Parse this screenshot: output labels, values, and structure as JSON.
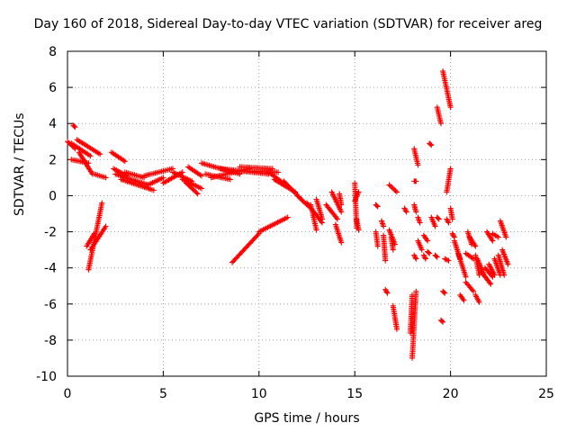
{
  "chart_data": {
    "type": "scatter",
    "title": "Day 160 of 2018, Sidereal Day-to-day VTEC variation (SDTVAR) for receiver areg",
    "xlabel": "GPS time / hours",
    "ylabel": "SDTVAR / TECUs",
    "xlim": [
      0,
      25
    ],
    "ylim": [
      -10,
      8
    ],
    "xticks": [
      "0",
      "5",
      "10",
      "15",
      "20",
      "25"
    ],
    "yticks": [
      "-10",
      "-8",
      "-6",
      "-4",
      "-2",
      "0",
      "2",
      "4",
      "6",
      "8"
    ],
    "grid": true,
    "marker": "+",
    "color": "#ff0000",
    "series": [
      {
        "name": "SDTVAR",
        "segments": [
          {
            "x": [
              0,
              0.4
            ],
            "y": [
              3.0,
              2.6
            ]
          },
          {
            "x": [
              0.2,
              1.2
            ],
            "y": [
              2.9,
              2.2
            ]
          },
          {
            "x": [
              0.5,
              1.7
            ],
            "y": [
              3.1,
              2.3
            ]
          },
          {
            "x": [
              0.6,
              1.3
            ],
            "y": [
              2.4,
              1.2
            ]
          },
          {
            "x": [
              0.2,
              1.1
            ],
            "y": [
              2.0,
              1.8
            ]
          },
          {
            "x": [
              0.3,
              0.4
            ],
            "y": [
              3.9,
              3.8
            ]
          },
          {
            "x": [
              1.4,
              2.0
            ],
            "y": [
              1.2,
              1.0
            ]
          },
          {
            "x": [
              1.1,
              1.8
            ],
            "y": [
              -4.1,
              -0.4
            ]
          },
          {
            "x": [
              1.2,
              2.0
            ],
            "y": [
              -3.0,
              -1.7
            ]
          },
          {
            "x": [
              1.0,
              1.4
            ],
            "y": [
              -2.8,
              -2.1
            ]
          },
          {
            "x": [
              2.3,
              3.0
            ],
            "y": [
              2.4,
              1.9
            ]
          },
          {
            "x": [
              2.4,
              3.1
            ],
            "y": [
              1.5,
              1.1
            ]
          },
          {
            "x": [
              2.5,
              4.2
            ],
            "y": [
              1.2,
              0.6
            ]
          },
          {
            "x": [
              2.8,
              4.5
            ],
            "y": [
              0.9,
              0.3
            ]
          },
          {
            "x": [
              3.0,
              4.0
            ],
            "y": [
              1.3,
              1.0
            ]
          },
          {
            "x": [
              4.0,
              5.5
            ],
            "y": [
              1.1,
              1.5
            ]
          },
          {
            "x": [
              4.2,
              5.0
            ],
            "y": [
              0.6,
              1.0
            ]
          },
          {
            "x": [
              5.0,
              6.0
            ],
            "y": [
              0.7,
              1.3
            ]
          },
          {
            "x": [
              5.5,
              6.5
            ],
            "y": [
              1.3,
              0.8
            ]
          },
          {
            "x": [
              6.0,
              7.0
            ],
            "y": [
              0.9,
              0.4
            ]
          },
          {
            "x": [
              6.3,
              7.0
            ],
            "y": [
              1.6,
              1.1
            ]
          },
          {
            "x": [
              6.2,
              6.8
            ],
            "y": [
              0.7,
              0.1
            ]
          },
          {
            "x": [
              7.0,
              9.0
            ],
            "y": [
              1.8,
              1.2
            ]
          },
          {
            "x": [
              7.2,
              8.5
            ],
            "y": [
              1.2,
              0.9
            ]
          },
          {
            "x": [
              7.5,
              9.5
            ],
            "y": [
              1.0,
              1.5
            ]
          },
          {
            "x": [
              8.0,
              10.5
            ],
            "y": [
              1.5,
              1.2
            ]
          },
          {
            "x": [
              8.5,
              11.0
            ],
            "y": [
              1.4,
              1.3
            ]
          },
          {
            "x": [
              9.0,
              10.7
            ],
            "y": [
              1.6,
              1.5
            ]
          },
          {
            "x": [
              8.6,
              10.0
            ],
            "y": [
              -3.7,
              -2.1
            ]
          },
          {
            "x": [
              10.0,
              11.5
            ],
            "y": [
              -2.0,
              -1.2
            ]
          },
          {
            "x": [
              10.5,
              11.4
            ],
            "y": [
              1.3,
              0.6
            ]
          },
          {
            "x": [
              10.8,
              11.9
            ],
            "y": [
              0.9,
              0.2
            ]
          },
          {
            "x": [
              11.3,
              12.3
            ],
            "y": [
              0.8,
              -0.3
            ]
          },
          {
            "x": [
              12.0,
              12.6
            ],
            "y": [
              0.0,
              -0.6
            ]
          },
          {
            "x": [
              12.5,
              13.3
            ],
            "y": [
              -0.4,
              -1.5
            ]
          },
          {
            "x": [
              12.7,
              13.0
            ],
            "y": [
              -0.5,
              -1.9
            ]
          },
          {
            "x": [
              13.0,
              13.3
            ],
            "y": [
              -0.2,
              -1.3
            ]
          },
          {
            "x": [
              13.5,
              14.1
            ],
            "y": [
              -0.5,
              -1.3
            ]
          },
          {
            "x": [
              13.8,
              14.3
            ],
            "y": [
              0.2,
              -0.9
            ]
          },
          {
            "x": [
              14.0,
              14.3
            ],
            "y": [
              -1.6,
              -2.6
            ]
          },
          {
            "x": [
              14.2,
              14.3
            ],
            "y": [
              0.1,
              -0.5
            ]
          },
          {
            "x": [
              15.0,
              15.1
            ],
            "y": [
              0.7,
              -1.8
            ]
          },
          {
            "x": [
              15.0,
              15.2
            ],
            "y": [
              -0.3,
              0.2
            ]
          },
          {
            "x": [
              15.1,
              15.2
            ],
            "y": [
              -1.3,
              -1.9
            ]
          },
          {
            "x": [
              16.1,
              16.2
            ],
            "y": [
              -0.5,
              -0.6
            ]
          },
          {
            "x": [
              16.1,
              16.2
            ],
            "y": [
              -2.0,
              -2.8
            ]
          },
          {
            "x": [
              16.4,
              16.5
            ],
            "y": [
              -1.4,
              -1.7
            ]
          },
          {
            "x": [
              16.5,
              16.6
            ],
            "y": [
              -2.2,
              -3.6
            ]
          },
          {
            "x": [
              16.6,
              16.7
            ],
            "y": [
              -5.2,
              -5.4
            ]
          },
          {
            "x": [
              16.8,
              17.1
            ],
            "y": [
              -1.9,
              -2.7
            ]
          },
          {
            "x": [
              16.9,
              17.0
            ],
            "y": [
              -2.3,
              -3.0
            ]
          },
          {
            "x": [
              16.8,
              17.2
            ],
            "y": [
              0.6,
              0.2
            ]
          },
          {
            "x": [
              17.0,
              17.2
            ],
            "y": [
              -6.1,
              -7.4
            ]
          },
          {
            "x": [
              17.6,
              17.7
            ],
            "y": [
              -0.7,
              -0.9
            ]
          },
          {
            "x": [
              17.9,
              18.0
            ],
            "y": [
              -7.6,
              -5.5
            ]
          },
          {
            "x": [
              18.0,
              18.2
            ],
            "y": [
              -9.0,
              -5.3
            ]
          },
          {
            "x": [
              18.1,
              18.2
            ],
            "y": [
              -3.3,
              -3.5
            ]
          },
          {
            "x": [
              18.1,
              18.2
            ],
            "y": [
              -0.5,
              -0.9
            ]
          },
          {
            "x": [
              18.1,
              18.2
            ],
            "y": [
              0.8,
              0.8
            ]
          },
          {
            "x": [
              18.3,
              18.4
            ],
            "y": [
              -1.2,
              -1.5
            ]
          },
          {
            "x": [
              18.1,
              18.3
            ],
            "y": [
              2.6,
              1.7
            ]
          },
          {
            "x": [
              18.3,
              18.5
            ],
            "y": [
              -2.5,
              -3.0
            ]
          },
          {
            "x": [
              18.6,
              18.7
            ],
            "y": [
              -3.3,
              -3.5
            ]
          },
          {
            "x": [
              18.6,
              18.8
            ],
            "y": [
              -2.2,
              -2.5
            ]
          },
          {
            "x": [
              18.8,
              18.9
            ],
            "y": [
              -3.1,
              -3.2
            ]
          },
          {
            "x": [
              18.9,
              19.0
            ],
            "y": [
              2.9,
              2.8
            ]
          },
          {
            "x": [
              19.0,
              19.2
            ],
            "y": [
              -1.2,
              -1.7
            ]
          },
          {
            "x": [
              19.2,
              19.3
            ],
            "y": [
              -3.3,
              -3.4
            ]
          },
          {
            "x": [
              19.3,
              19.4
            ],
            "y": [
              -1.2,
              -1.3
            ]
          },
          {
            "x": [
              19.3,
              19.5
            ],
            "y": [
              4.9,
              4.0
            ]
          },
          {
            "x": [
              19.5,
              19.6
            ],
            "y": [
              -6.9,
              -7.0
            ]
          },
          {
            "x": [
              19.6,
              19.7
            ],
            "y": [
              -5.3,
              -5.4
            ]
          },
          {
            "x": [
              19.7,
              19.9
            ],
            "y": [
              -3.5,
              -3.6
            ]
          },
          {
            "x": [
              19.8,
              19.9
            ],
            "y": [
              -1.3,
              -1.5
            ]
          },
          {
            "x": [
              19.6,
              20.0
            ],
            "y": [
              6.9,
              4.9
            ]
          },
          {
            "x": [
              19.8,
              20.0
            ],
            "y": [
              0.2,
              1.5
            ]
          },
          {
            "x": [
              20.0,
              20.1
            ],
            "y": [
              -0.7,
              -1.3
            ]
          },
          {
            "x": [
              20.1,
              20.2
            ],
            "y": [
              -2.1,
              -2.3
            ]
          },
          {
            "x": [
              20.2,
              20.5
            ],
            "y": [
              -2.5,
              -3.5
            ]
          },
          {
            "x": [
              20.4,
              20.8
            ],
            "y": [
              -3.2,
              -4.5
            ]
          },
          {
            "x": [
              20.5,
              20.7
            ],
            "y": [
              -5.5,
              -5.8
            ]
          },
          {
            "x": [
              20.8,
              21.2
            ],
            "y": [
              -4.8,
              -5.3
            ]
          },
          {
            "x": [
              20.8,
              21.2
            ],
            "y": [
              -3.2,
              -3.5
            ]
          },
          {
            "x": [
              20.9,
              21.1
            ],
            "y": [
              -2.0,
              -2.7
            ]
          },
          {
            "x": [
              21.0,
              21.3
            ],
            "y": [
              -2.3,
              -2.8
            ]
          },
          {
            "x": [
              21.3,
              21.5
            ],
            "y": [
              -3.3,
              -4.4
            ]
          },
          {
            "x": [
              21.3,
              21.5
            ],
            "y": [
              -5.5,
              -5.9
            ]
          },
          {
            "x": [
              21.4,
              21.8
            ],
            "y": [
              -3.5,
              -4.5
            ]
          },
          {
            "x": [
              21.6,
              22.1
            ],
            "y": [
              -4.2,
              -4.9
            ]
          },
          {
            "x": [
              21.8,
              22.2
            ],
            "y": [
              -4.0,
              -4.5
            ]
          },
          {
            "x": [
              22.0,
              22.3
            ],
            "y": [
              -3.8,
              -4.4
            ]
          },
          {
            "x": [
              21.9,
              22.2
            ],
            "y": [
              -2.0,
              -2.5
            ]
          },
          {
            "x": [
              22.2,
              22.5
            ],
            "y": [
              -2.1,
              -2.3
            ]
          },
          {
            "x": [
              22.3,
              22.6
            ],
            "y": [
              -3.5,
              -4.4
            ]
          },
          {
            "x": [
              22.5,
              22.8
            ],
            "y": [
              -3.3,
              -4.4
            ]
          },
          {
            "x": [
              22.6,
              22.9
            ],
            "y": [
              -1.4,
              -2.3
            ]
          },
          {
            "x": [
              22.7,
              23.0
            ],
            "y": [
              -3.0,
              -3.8
            ]
          }
        ]
      }
    ]
  }
}
